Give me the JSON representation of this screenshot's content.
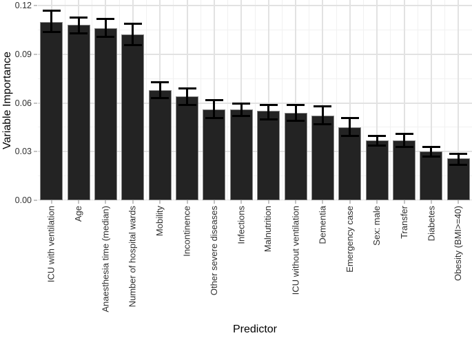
{
  "chart_data": {
    "type": "bar",
    "title": "",
    "xlabel": "Predictor",
    "ylabel": "Variable Importance",
    "ylim": [
      0,
      0.12
    ],
    "yticks": [
      0,
      0.03,
      0.06,
      0.09,
      0.12
    ],
    "ytick_labels": [
      "0.00",
      "0.03",
      "0.06",
      "0.09",
      "0.12"
    ],
    "grid": "major and minor, light gray on white",
    "legend": "none",
    "x_label_rotation_deg": 90,
    "categories": [
      "ICU with ventilation",
      "Age",
      "Anaesthesia time (median)",
      "Number of hospital wards",
      "Mobility",
      "Incontinence",
      "Other severe diseases",
      "Infections",
      "Malnutrition",
      "ICU without ventilation",
      "Dementia",
      "Emergency case",
      "Sex: male",
      "Transfer",
      "Diabetes",
      "Obesity (BMI>=40)"
    ],
    "values": [
      0.11,
      0.108,
      0.106,
      0.102,
      0.068,
      0.064,
      0.056,
      0.056,
      0.055,
      0.054,
      0.052,
      0.045,
      0.037,
      0.037,
      0.03,
      0.026
    ],
    "error_low": [
      0.104,
      0.103,
      0.101,
      0.096,
      0.063,
      0.059,
      0.051,
      0.052,
      0.05,
      0.049,
      0.047,
      0.04,
      0.034,
      0.033,
      0.027,
      0.022
    ],
    "error_high": [
      0.117,
      0.113,
      0.112,
      0.109,
      0.073,
      0.069,
      0.062,
      0.06,
      0.059,
      0.059,
      0.058,
      0.051,
      0.04,
      0.041,
      0.033,
      0.029
    ],
    "colors": {
      "bar_fill": "#232323",
      "bar_border": "#8a8a8a",
      "error_bar": "#000000",
      "grid_major": "#e2e2e2",
      "grid_minor": "#f1f1f1",
      "tick_mark": "#c4c4c4",
      "tick_text": "#303030",
      "title_text": "#000000",
      "background": "#ffffff"
    }
  }
}
